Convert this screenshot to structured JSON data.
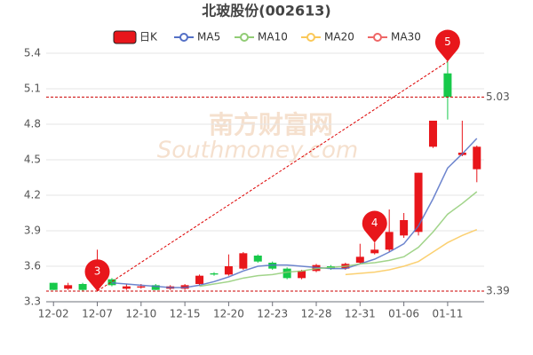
{
  "chart_data": {
    "type": "candlestick",
    "title": "北玻股份(002613)",
    "watermark": [
      "南方财富网",
      "Southmoney.com"
    ],
    "categories": [
      "12-02",
      null,
      null,
      "12-07",
      null,
      null,
      "12-10",
      null,
      null,
      "12-15",
      null,
      null,
      "12-20",
      null,
      null,
      "12-23",
      null,
      null,
      "12-28",
      null,
      null,
      "12-31",
      null,
      null,
      "01-06",
      null,
      null,
      "01-11",
      null,
      null
    ],
    "candles": {
      "name": "日K",
      "up_color": "#e8161b",
      "down_color": "#17c94a",
      "open": [
        3.46,
        3.41,
        3.45,
        3.43,
        3.49,
        3.41,
        3.42,
        3.44,
        3.41,
        3.41,
        3.45,
        3.54,
        3.53,
        3.58,
        3.69,
        3.63,
        3.58,
        3.5,
        3.56,
        3.6,
        3.58,
        3.63,
        3.71,
        3.74,
        3.86,
        3.89,
        4.61,
        5.23,
        4.54,
        4.42
      ],
      "close": [
        3.4,
        3.44,
        3.4,
        3.46,
        3.44,
        3.43,
        3.43,
        3.4,
        3.43,
        3.44,
        3.52,
        3.53,
        3.6,
        3.71,
        3.64,
        3.58,
        3.5,
        3.56,
        3.61,
        3.58,
        3.62,
        3.68,
        3.74,
        3.89,
        3.99,
        4.39,
        4.83,
        5.03,
        4.56,
        4.61
      ],
      "high": [
        3.46,
        3.46,
        3.46,
        3.74,
        3.5,
        3.45,
        3.45,
        3.45,
        3.44,
        3.45,
        3.53,
        3.55,
        3.7,
        3.72,
        3.7,
        3.64,
        3.59,
        3.57,
        3.62,
        3.61,
        3.63,
        3.79,
        3.8,
        4.08,
        4.05,
        4.39,
        4.83,
        5.33,
        4.83,
        4.62
      ],
      "low": [
        3.4,
        3.4,
        3.39,
        3.39,
        3.43,
        3.4,
        3.41,
        3.4,
        3.4,
        3.4,
        3.44,
        3.52,
        3.52,
        3.57,
        3.63,
        3.57,
        3.49,
        3.49,
        3.55,
        3.57,
        3.57,
        3.62,
        3.7,
        3.72,
        3.84,
        3.86,
        4.6,
        4.84,
        4.53,
        4.31
      ]
    },
    "series": [
      {
        "name": "MA5",
        "color": "#5470c6",
        "values": [
          null,
          null,
          null,
          null,
          3.46,
          3.45,
          3.44,
          3.43,
          3.42,
          3.42,
          3.44,
          3.47,
          3.51,
          3.56,
          3.6,
          3.61,
          3.61,
          3.6,
          3.59,
          3.58,
          3.58,
          3.62,
          3.66,
          3.72,
          3.79,
          3.94,
          4.17,
          4.43,
          4.55,
          4.68
        ]
      },
      {
        "name": "MA10",
        "color": "#91cc75",
        "values": [
          null,
          null,
          null,
          null,
          null,
          null,
          null,
          null,
          null,
          null,
          3.43,
          3.45,
          3.47,
          3.5,
          3.52,
          3.53,
          3.55,
          3.56,
          3.58,
          3.59,
          3.6,
          3.62,
          3.63,
          3.65,
          3.68,
          3.76,
          3.89,
          4.04,
          4.13,
          4.23
        ]
      },
      {
        "name": "MA20",
        "color": "#fac858",
        "values": [
          null,
          null,
          null,
          null,
          null,
          null,
          null,
          null,
          null,
          null,
          null,
          null,
          null,
          null,
          null,
          null,
          null,
          null,
          null,
          null,
          3.53,
          3.54,
          3.55,
          3.57,
          3.6,
          3.64,
          3.72,
          3.8,
          3.86,
          3.91
        ]
      },
      {
        "name": "MA30",
        "color": "#ee6666",
        "values": [
          null,
          null,
          null,
          null,
          null,
          null,
          null,
          null,
          null,
          null,
          null,
          null,
          null,
          null,
          null,
          null,
          null,
          null,
          null,
          null,
          null,
          null,
          null,
          null,
          null,
          null,
          null,
          null,
          null,
          null
        ]
      }
    ],
    "marklines": [
      5.03,
      3.39
    ],
    "markers": [
      {
        "label": "3",
        "index": 3,
        "value": 3.39
      },
      {
        "label": "4",
        "index": 22,
        "value": 3.8
      },
      {
        "label": "5",
        "index": 27,
        "value": 5.33
      }
    ],
    "ylim": [
      3.3,
      5.4
    ],
    "yticks": [
      3.3,
      3.6,
      3.9,
      4.2,
      4.5,
      4.8,
      5.1,
      5.4
    ],
    "grid": true
  }
}
